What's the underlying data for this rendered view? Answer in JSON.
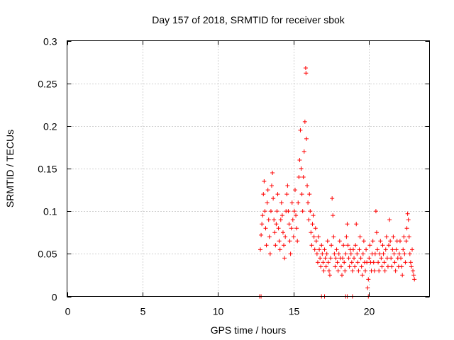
{
  "chart_data": {
    "type": "scatter",
    "title": "Day 157 of 2018, SRMTID for receiver sbok",
    "xlabel": "GPS time / hours",
    "ylabel": "SRMTID / TECUs",
    "xlim": [
      0,
      24
    ],
    "ylim": [
      0,
      0.3
    ],
    "xticks": [
      0,
      5,
      10,
      15,
      20
    ],
    "yticks": [
      0,
      0.05,
      0.1,
      0.15,
      0.2,
      0.25,
      0.3
    ],
    "xtick_labels": [
      "0",
      "5",
      "10",
      "15",
      "20"
    ],
    "ytick_labels": [
      "0",
      "0.05",
      "0.1",
      "0.15",
      "0.2",
      "0.25",
      "0.3"
    ],
    "grid": true,
    "marker": "+",
    "color": "#ff0000",
    "series": [
      {
        "name": "SRMTID",
        "points": [
          [
            12.75,
            0.0
          ],
          [
            12.85,
            0.0
          ],
          [
            16.85,
            0.0
          ],
          [
            17.05,
            0.0
          ],
          [
            18.45,
            0.0
          ],
          [
            18.55,
            0.0
          ],
          [
            18.9,
            0.0
          ],
          [
            19.95,
            0.0
          ],
          [
            12.8,
            0.055
          ],
          [
            12.85,
            0.072
          ],
          [
            12.9,
            0.085
          ],
          [
            12.95,
            0.095
          ],
          [
            13.0,
            0.12
          ],
          [
            13.05,
            0.135
          ],
          [
            13.1,
            0.1
          ],
          [
            13.15,
            0.08
          ],
          [
            13.2,
            0.06
          ],
          [
            13.25,
            0.11
          ],
          [
            13.3,
            0.125
          ],
          [
            13.35,
            0.09
          ],
          [
            13.4,
            0.07
          ],
          [
            13.45,
            0.05
          ],
          [
            13.5,
            0.1
          ],
          [
            13.55,
            0.13
          ],
          [
            13.6,
            0.145
          ],
          [
            13.65,
            0.115
          ],
          [
            13.7,
            0.09
          ],
          [
            13.75,
            0.075
          ],
          [
            13.8,
            0.06
          ],
          [
            13.85,
            0.085
          ],
          [
            13.9,
            0.1
          ],
          [
            13.95,
            0.12
          ],
          [
            14.0,
            0.08
          ],
          [
            14.05,
            0.065
          ],
          [
            14.1,
            0.055
          ],
          [
            14.15,
            0.09
          ],
          [
            14.2,
            0.11
          ],
          [
            14.25,
            0.095
          ],
          [
            14.3,
            0.075
          ],
          [
            14.35,
            0.06
          ],
          [
            14.4,
            0.045
          ],
          [
            14.45,
            0.07
          ],
          [
            14.5,
            0.1
          ],
          [
            14.55,
            0.12
          ],
          [
            14.6,
            0.13
          ],
          [
            14.65,
            0.1
          ],
          [
            14.7,
            0.085
          ],
          [
            14.75,
            0.065
          ],
          [
            14.8,
            0.05
          ],
          [
            14.85,
            0.08
          ],
          [
            14.9,
            0.11
          ],
          [
            14.95,
            0.09
          ],
          [
            15.0,
            0.07
          ],
          [
            15.05,
            0.1
          ],
          [
            15.1,
            0.125
          ],
          [
            15.15,
            0.095
          ],
          [
            15.2,
            0.08
          ],
          [
            15.25,
            0.065
          ],
          [
            15.3,
            0.11
          ],
          [
            15.35,
            0.14
          ],
          [
            15.4,
            0.16
          ],
          [
            15.45,
            0.195
          ],
          [
            15.5,
            0.15
          ],
          [
            15.55,
            0.12
          ],
          [
            15.6,
            0.1
          ],
          [
            15.65,
            0.14
          ],
          [
            15.7,
            0.17
          ],
          [
            15.75,
            0.205
          ],
          [
            15.8,
            0.268
          ],
          [
            15.82,
            0.262
          ],
          [
            15.85,
            0.185
          ],
          [
            15.9,
            0.13
          ],
          [
            15.95,
            0.11
          ],
          [
            16.0,
            0.09
          ],
          [
            16.05,
            0.12
          ],
          [
            16.1,
            0.1
          ],
          [
            16.15,
            0.075
          ],
          [
            16.2,
            0.06
          ],
          [
            16.25,
            0.085
          ],
          [
            16.3,
            0.095
          ],
          [
            16.35,
            0.07
          ],
          [
            16.4,
            0.055
          ],
          [
            16.45,
            0.08
          ],
          [
            16.5,
            0.065
          ],
          [
            16.55,
            0.05
          ],
          [
            16.6,
            0.04
          ],
          [
            16.65,
            0.07
          ],
          [
            16.7,
            0.055
          ],
          [
            16.75,
            0.045
          ],
          [
            16.8,
            0.035
          ],
          [
            16.85,
            0.06
          ],
          [
            16.9,
            0.05
          ],
          [
            16.95,
            0.04
          ],
          [
            17.0,
            0.03
          ],
          [
            17.05,
            0.055
          ],
          [
            17.1,
            0.045
          ],
          [
            17.15,
            0.035
          ],
          [
            17.2,
            0.05
          ],
          [
            17.25,
            0.065
          ],
          [
            17.3,
            0.04
          ],
          [
            17.35,
            0.03
          ],
          [
            17.4,
            0.025
          ],
          [
            17.45,
            0.045
          ],
          [
            17.5,
            0.06
          ],
          [
            17.55,
            0.115
          ],
          [
            17.6,
            0.095
          ],
          [
            17.65,
            0.07
          ],
          [
            17.7,
            0.05
          ],
          [
            17.75,
            0.035
          ],
          [
            17.8,
            0.045
          ],
          [
            17.85,
            0.055
          ],
          [
            17.9,
            0.04
          ],
          [
            17.95,
            0.03
          ],
          [
            18.0,
            0.05
          ],
          [
            18.05,
            0.065
          ],
          [
            18.1,
            0.045
          ],
          [
            18.15,
            0.035
          ],
          [
            18.2,
            0.025
          ],
          [
            18.25,
            0.045
          ],
          [
            18.3,
            0.06
          ],
          [
            18.35,
            0.04
          ],
          [
            18.4,
            0.03
          ],
          [
            18.45,
            0.05
          ],
          [
            18.5,
            0.07
          ],
          [
            18.55,
            0.085
          ],
          [
            18.6,
            0.06
          ],
          [
            18.65,
            0.045
          ],
          [
            18.7,
            0.035
          ],
          [
            18.75,
            0.055
          ],
          [
            18.8,
            0.05
          ],
          [
            18.85,
            0.04
          ],
          [
            18.9,
            0.03
          ],
          [
            18.95,
            0.055
          ],
          [
            19.0,
            0.045
          ],
          [
            19.05,
            0.035
          ],
          [
            19.1,
            0.06
          ],
          [
            19.15,
            0.085
          ],
          [
            19.2,
            0.05
          ],
          [
            19.25,
            0.04
          ],
          [
            19.3,
            0.03
          ],
          [
            19.35,
            0.055
          ],
          [
            19.4,
            0.07
          ],
          [
            19.45,
            0.045
          ],
          [
            19.5,
            0.035
          ],
          [
            19.55,
            0.025
          ],
          [
            19.6,
            0.05
          ],
          [
            19.65,
            0.065
          ],
          [
            19.7,
            0.04
          ],
          [
            19.75,
            0.03
          ],
          [
            19.8,
            0.055
          ],
          [
            19.85,
            0.04
          ],
          [
            19.9,
            0.01
          ],
          [
            19.95,
            0.02
          ],
          [
            20.0,
            0.045
          ],
          [
            20.05,
            0.06
          ],
          [
            20.1,
            0.04
          ],
          [
            20.15,
            0.03
          ],
          [
            20.2,
            0.05
          ],
          [
            20.25,
            0.065
          ],
          [
            20.3,
            0.04
          ],
          [
            20.35,
            0.03
          ],
          [
            20.4,
            0.05
          ],
          [
            20.45,
            0.1
          ],
          [
            20.5,
            0.075
          ],
          [
            20.55,
            0.055
          ],
          [
            20.6,
            0.04
          ],
          [
            20.65,
            0.03
          ],
          [
            20.7,
            0.05
          ],
          [
            20.75,
            0.065
          ],
          [
            20.8,
            0.045
          ],
          [
            20.85,
            0.035
          ],
          [
            20.9,
            0.06
          ],
          [
            20.95,
            0.05
          ],
          [
            21.0,
            0.04
          ],
          [
            21.05,
            0.03
          ],
          [
            21.1,
            0.055
          ],
          [
            21.15,
            0.07
          ],
          [
            21.2,
            0.045
          ],
          [
            21.25,
            0.035
          ],
          [
            21.3,
            0.06
          ],
          [
            21.35,
            0.09
          ],
          [
            21.4,
            0.065
          ],
          [
            21.45,
            0.045
          ],
          [
            21.5,
            0.035
          ],
          [
            21.55,
            0.055
          ],
          [
            21.6,
            0.07
          ],
          [
            21.65,
            0.05
          ],
          [
            21.7,
            0.04
          ],
          [
            21.75,
            0.03
          ],
          [
            21.8,
            0.055
          ],
          [
            21.85,
            0.065
          ],
          [
            21.9,
            0.045
          ],
          [
            21.95,
            0.035
          ],
          [
            22.0,
            0.05
          ],
          [
            22.05,
            0.065
          ],
          [
            22.1,
            0.045
          ],
          [
            22.15,
            0.035
          ],
          [
            22.2,
            0.025
          ],
          [
            22.25,
            0.055
          ],
          [
            22.3,
            0.07
          ],
          [
            22.35,
            0.05
          ],
          [
            22.4,
            0.04
          ],
          [
            22.45,
            0.065
          ],
          [
            22.5,
            0.08
          ],
          [
            22.55,
            0.097
          ],
          [
            22.6,
            0.09
          ],
          [
            22.65,
            0.07
          ],
          [
            22.7,
            0.05
          ],
          [
            22.75,
            0.04
          ],
          [
            22.8,
            0.035
          ],
          [
            22.85,
            0.055
          ],
          [
            22.9,
            0.03
          ],
          [
            22.95,
            0.025
          ],
          [
            23.0,
            0.02
          ]
        ]
      }
    ]
  }
}
